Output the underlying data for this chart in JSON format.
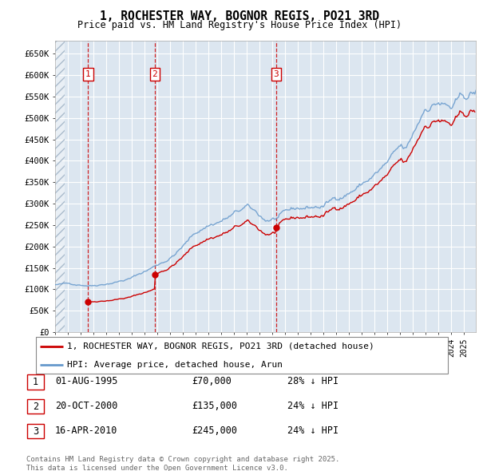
{
  "title": "1, ROCHESTER WAY, BOGNOR REGIS, PO21 3RD",
  "subtitle": "Price paid vs. HM Land Registry's House Price Index (HPI)",
  "ylim": [
    0,
    680000
  ],
  "yticks": [
    0,
    50000,
    100000,
    150000,
    200000,
    250000,
    300000,
    350000,
    400000,
    450000,
    500000,
    550000,
    600000,
    650000
  ],
  "ytick_labels": [
    "£0",
    "£50K",
    "£100K",
    "£150K",
    "£200K",
    "£250K",
    "£300K",
    "£350K",
    "£400K",
    "£450K",
    "£500K",
    "£550K",
    "£600K",
    "£650K"
  ],
  "xlim_start": 1993.0,
  "xlim_end": 2025.9,
  "hpi_color": "#6699cc",
  "price_color": "#cc0000",
  "sale_dates": [
    1995.583,
    2000.792,
    2010.292
  ],
  "sale_prices": [
    70000,
    135000,
    245000
  ],
  "sale_labels": [
    "1",
    "2",
    "3"
  ],
  "legend_label_red": "1, ROCHESTER WAY, BOGNOR REGIS, PO21 3RD (detached house)",
  "legend_label_blue": "HPI: Average price, detached house, Arun",
  "table_rows": [
    [
      "1",
      "01-AUG-1995",
      "£70,000",
      "28% ↓ HPI"
    ],
    [
      "2",
      "20-OCT-2000",
      "£135,000",
      "24% ↓ HPI"
    ],
    [
      "3",
      "16-APR-2010",
      "£245,000",
      "24% ↓ HPI"
    ]
  ],
  "footer": "Contains HM Land Registry data © Crown copyright and database right 2025.\nThis data is licensed under the Open Government Licence v3.0.",
  "bg_color": "#dce6f0",
  "grid_color": "#ffffff",
  "hatch_color": "#b8c8d8"
}
